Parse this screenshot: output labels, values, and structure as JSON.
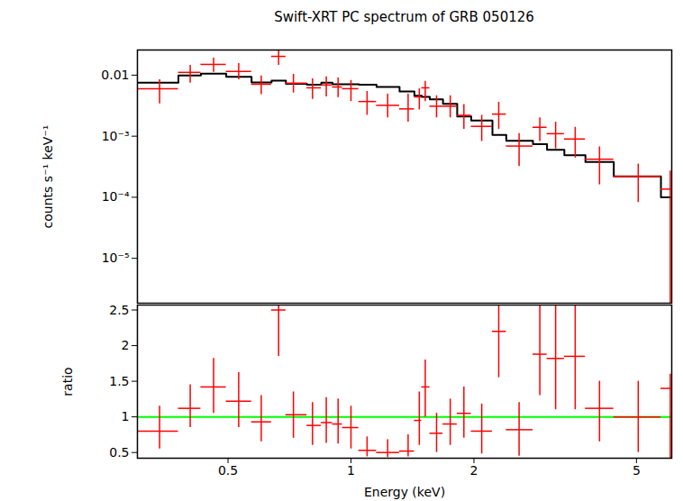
{
  "chart_data": [
    {
      "type": "scatter",
      "title": "Swift-XRT PC spectrum of GRB 050126",
      "y_label": "counts s⁻¹ keV⁻¹",
      "log": true,
      "tick_labels": "y",
      "xlim": [
        0.3,
        6.1
      ],
      "xticks": [
        0.5,
        1,
        2,
        5
      ],
      "ylim": [
        1.84e-06,
        0.0258
      ],
      "yticks": [
        {
          "value": 1e-05,
          "label": "10⁻⁵"
        },
        {
          "value": 0.0001,
          "label": "10⁻⁴"
        },
        {
          "value": 0.001,
          "label": "10⁻³"
        },
        0.01
      ],
      "points": {
        "color": "#ff0000",
        "marker": "cross",
        "x": [
          0.34,
          0.404,
          0.461,
          0.531,
          0.603,
          0.665,
          0.723,
          0.805,
          0.87,
          0.93,
          1.0,
          1.095,
          1.23,
          1.38,
          1.47,
          1.52,
          1.62,
          1.75,
          1.89,
          2.09,
          2.3,
          2.58,
          2.9,
          3.17,
          3.54,
          4.06,
          5.05,
          6.05
        ],
        "x_low": [
          0.3,
          0.378,
          0.429,
          0.495,
          0.571,
          0.639,
          0.693,
          0.78,
          0.846,
          0.901,
          0.953,
          1.045,
          1.155,
          1.315,
          1.43,
          1.49,
          1.56,
          1.68,
          1.82,
          1.97,
          2.22,
          2.4,
          2.79,
          3.02,
          3.33,
          3.75,
          4.4,
          5.74
        ],
        "x_high": [
          0.378,
          0.429,
          0.495,
          0.571,
          0.639,
          0.693,
          0.78,
          0.846,
          0.901,
          0.953,
          1.045,
          1.155,
          1.315,
          1.43,
          1.49,
          1.56,
          1.68,
          1.82,
          1.97,
          2.22,
          2.4,
          2.79,
          3.02,
          3.33,
          3.75,
          4.4,
          5.74,
          6.4
        ],
        "y": [
          0.006,
          0.0111,
          0.015,
          0.0115,
          0.0071,
          0.0203,
          0.0074,
          0.0062,
          0.0069,
          0.0064,
          0.006,
          0.0037,
          0.0032,
          0.0028,
          0.0044,
          0.0062,
          0.0031,
          0.0031,
          0.0022,
          0.00145,
          0.0023,
          0.00069,
          0.0014,
          0.0011,
          0.0009,
          0.00042,
          0.00022,
          0.000136
        ],
        "y_low": [
          0.0034,
          0.0074,
          0.0111,
          0.0084,
          0.0048,
          0.0145,
          0.0051,
          0.004,
          0.0044,
          0.0043,
          0.0037,
          0.0022,
          0.002,
          0.0017,
          0.0027,
          0.0037,
          0.002,
          0.002,
          0.0013,
          0.00082,
          0.0013,
          0.00032,
          0.00082,
          0.00062,
          0.00044,
          0.00016,
          8.2e-05,
          1e-06
        ],
        "y_high": [
          0.0084,
          0.0145,
          0.019,
          0.0155,
          0.0097,
          0.0258,
          0.0103,
          0.0087,
          0.0094,
          0.009,
          0.0082,
          0.0054,
          0.0049,
          0.0049,
          0.006,
          0.0079,
          0.0046,
          0.0046,
          0.0033,
          0.0022,
          0.0036,
          0.0011,
          0.002,
          0.0017,
          0.0014,
          0.00067,
          0.00035,
          0.00027
        ]
      },
      "model": {
        "type": "line",
        "line_style": "step",
        "color": "#000000",
        "values": [
          0.0075,
          0.0099,
          0.0106,
          0.0094,
          0.0076,
          0.0081,
          0.0072,
          0.007,
          0.0075,
          0.0071,
          0.0071,
          0.007,
          0.0064,
          0.0054,
          0.0046,
          0.0044,
          0.004,
          0.0034,
          0.0021,
          0.0018,
          0.00105,
          0.00084,
          0.00074,
          0.0006,
          0.00049,
          0.00038,
          0.00022,
          0.0001
        ]
      }
    },
    {
      "type": "scatter",
      "x_label": "Energy (keV)",
      "y_label": "ratio",
      "log": "x",
      "xlim": [
        0.3,
        6.1
      ],
      "xticks": [
        0.5,
        1,
        2,
        5
      ],
      "ylim": [
        0.42,
        2.57
      ],
      "yticks": [
        0.5,
        1,
        1.5,
        2,
        2.5
      ],
      "points": {
        "color": "#ff0000",
        "marker": "cross",
        "x": [
          0.34,
          0.404,
          0.461,
          0.531,
          0.603,
          0.665,
          0.723,
          0.805,
          0.87,
          0.93,
          1.0,
          1.095,
          1.23,
          1.38,
          1.47,
          1.52,
          1.62,
          1.75,
          1.89,
          2.09,
          2.3,
          2.58,
          2.9,
          3.17,
          3.54,
          4.06,
          5.05,
          6.05
        ],
        "x_low": [
          0.3,
          0.378,
          0.429,
          0.495,
          0.571,
          0.639,
          0.693,
          0.78,
          0.846,
          0.901,
          0.953,
          1.045,
          1.155,
          1.315,
          1.43,
          1.49,
          1.56,
          1.68,
          1.82,
          1.97,
          2.22,
          2.4,
          2.79,
          3.02,
          3.33,
          3.75,
          4.4,
          5.74
        ],
        "x_high": [
          0.378,
          0.429,
          0.495,
          0.571,
          0.639,
          0.693,
          0.78,
          0.846,
          0.901,
          0.953,
          1.045,
          1.155,
          1.315,
          1.43,
          1.49,
          1.56,
          1.68,
          1.82,
          1.97,
          2.22,
          2.4,
          2.79,
          3.02,
          3.33,
          3.75,
          4.4,
          5.74,
          6.4
        ],
        "y": [
          0.8,
          1.12,
          1.42,
          1.22,
          0.93,
          2.5,
          1.03,
          0.88,
          0.92,
          0.9,
          0.85,
          0.53,
          0.5,
          0.52,
          0.95,
          1.42,
          0.77,
          0.9,
          1.05,
          0.8,
          2.2,
          0.82,
          1.88,
          1.82,
          1.85,
          1.12,
          1.0,
          1.4
        ],
        "y_low": [
          0.55,
          0.85,
          1.05,
          0.85,
          0.65,
          1.85,
          0.7,
          0.6,
          0.63,
          0.62,
          0.55,
          0.44,
          0.43,
          0.44,
          0.6,
          1.0,
          0.5,
          0.6,
          0.7,
          0.48,
          1.55,
          0.45,
          1.3,
          1.1,
          1.1,
          0.65,
          0.5,
          0.3
        ],
        "y_high": [
          1.15,
          1.45,
          1.82,
          1.62,
          1.3,
          3.1,
          1.35,
          1.2,
          1.27,
          1.25,
          1.15,
          0.72,
          0.68,
          0.75,
          1.35,
          1.8,
          1.05,
          1.25,
          1.42,
          1.18,
          2.65,
          1.2,
          2.6,
          2.6,
          2.6,
          1.5,
          1.5,
          1.6
        ]
      },
      "reference": {
        "value": 1,
        "color": "#00ff00"
      }
    }
  ]
}
